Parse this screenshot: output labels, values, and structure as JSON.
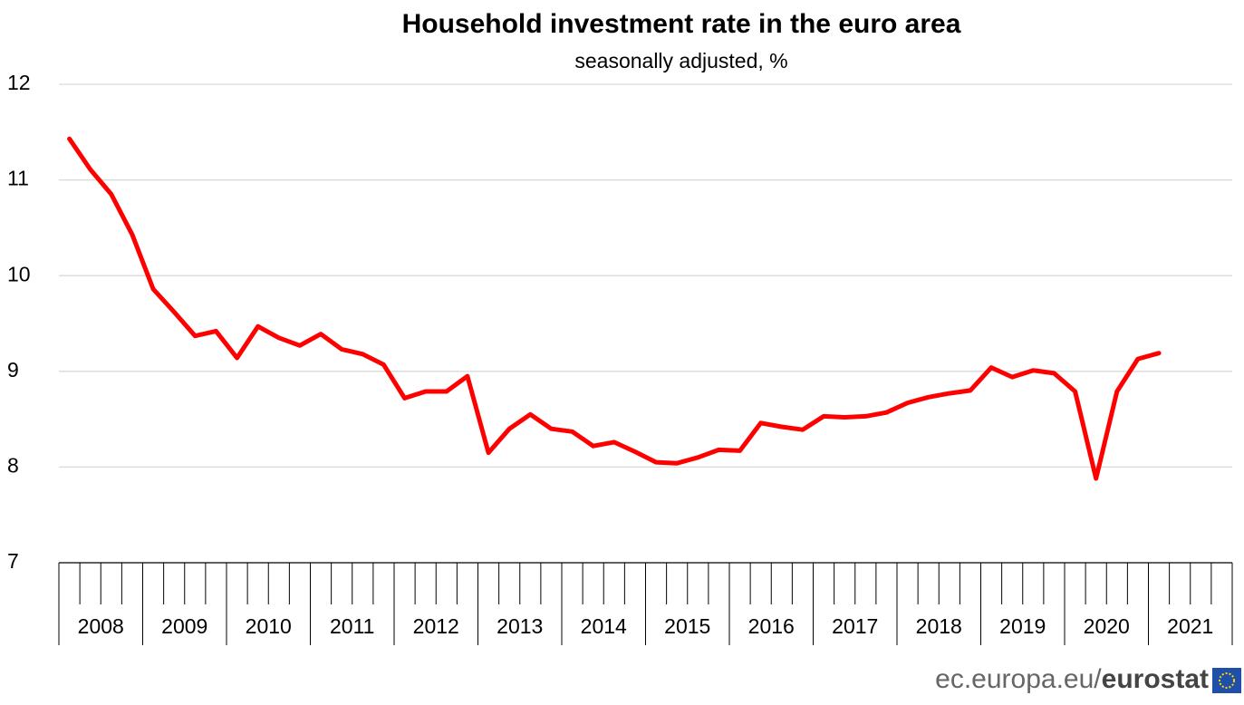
{
  "chart_data": {
    "type": "line",
    "title": "Household investment rate in the euro area",
    "subtitle": "seasonally adjusted, %",
    "categories": [
      null,
      null,
      null,
      null,
      null,
      null,
      null,
      null,
      null,
      null,
      null,
      null,
      null,
      null,
      null,
      null,
      null,
      null,
      null,
      null,
      null,
      null,
      null,
      null,
      null,
      null,
      null,
      null,
      null,
      null,
      null,
      null,
      null,
      null,
      null,
      null,
      null,
      null,
      null,
      null,
      null,
      null,
      null,
      null,
      null,
      null,
      null,
      null,
      null,
      null,
      null,
      null,
      null
    ],
    "year_groups": [
      "2008",
      "2009",
      "2010",
      "2011",
      "2012",
      "2013",
      "2014",
      "2015",
      "2016",
      "2017",
      "2018",
      "2019",
      "2020",
      "2021"
    ],
    "values": [
      11.43,
      11.11,
      10.85,
      10.43,
      9.86,
      9.62,
      9.37,
      9.42,
      9.14,
      9.47,
      9.35,
      9.27,
      9.39,
      9.23,
      9.18,
      9.07,
      8.72,
      8.79,
      8.79,
      8.95,
      8.15,
      8.4,
      8.55,
      8.4,
      8.37,
      8.22,
      8.26,
      8.16,
      8.05,
      8.04,
      8.1,
      8.18,
      8.17,
      8.46,
      8.42,
      8.39,
      8.53,
      8.52,
      8.53,
      8.57,
      8.67,
      8.73,
      8.77,
      8.8,
      9.04,
      8.94,
      9.01,
      8.98,
      8.79,
      7.88,
      8.79,
      9.13,
      9.19
    ],
    "color": "#ff0000",
    "ylim": [
      7,
      12
    ],
    "yticks": [
      7,
      8,
      9,
      10,
      11,
      12
    ],
    "grid": true,
    "footer": "ec.europa.eu/",
    "footer_brand": "eurostat"
  }
}
